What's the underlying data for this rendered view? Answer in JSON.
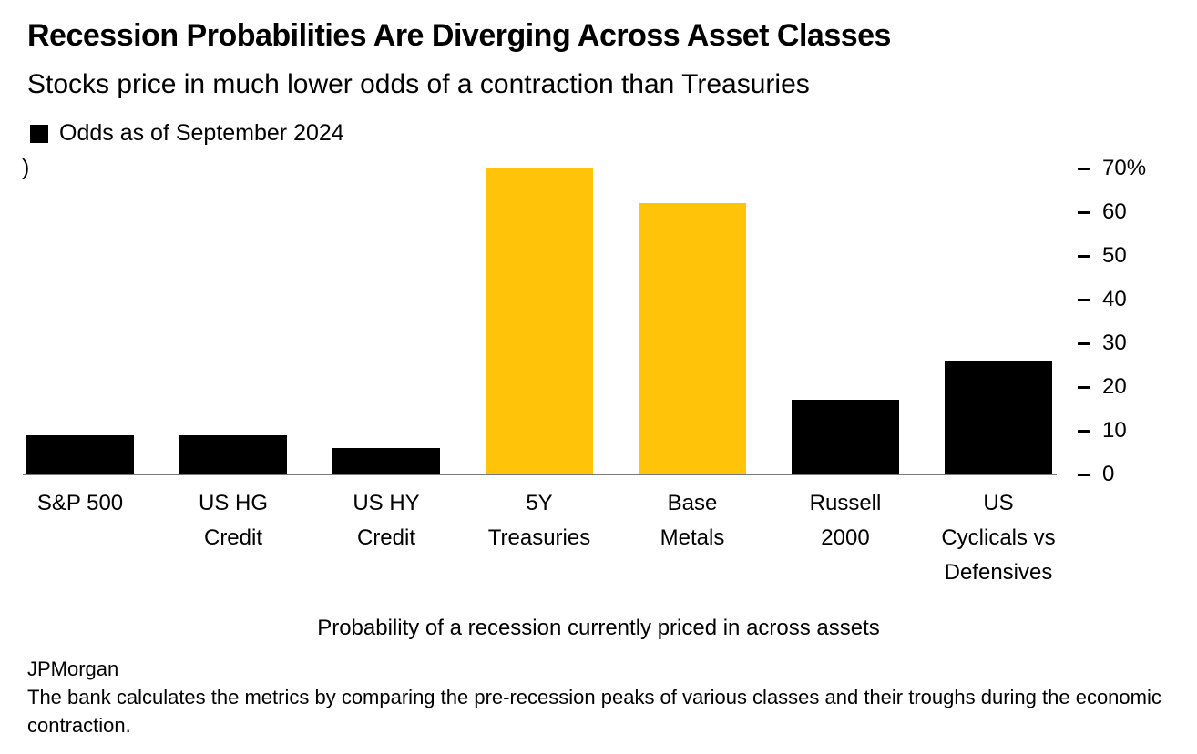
{
  "chart_data": {
    "type": "bar",
    "title": "Recession Probabilities Are Diverging Across Asset Classes",
    "subtitle": "Stocks price in much lower odds of a contraction than Treasuries",
    "legend": [
      "Odds as of September 2024"
    ],
    "legend_marker_color": "#000000",
    "categories": [
      "S&P 500",
      "US HG Credit",
      "US HY Credit",
      "5Y Treasuries",
      "Base Metals",
      "Russell 2000",
      "US Cyclicals vs Defensives"
    ],
    "category_lines": [
      [
        "S&P 500"
      ],
      [
        "US HG",
        "Credit"
      ],
      [
        "US HY",
        "Credit"
      ],
      [
        "5Y",
        "Treasuries"
      ],
      [
        "Base",
        "Metals"
      ],
      [
        "Russell",
        "2000"
      ],
      [
        "US",
        "Cyclicals vs",
        "Defensives"
      ]
    ],
    "values": [
      9,
      9,
      6,
      70,
      62,
      17,
      26
    ],
    "unit": "%",
    "bar_colors": [
      "#000000",
      "#000000",
      "#000000",
      "#FFC40A",
      "#FFC40A",
      "#000000",
      "#000000"
    ],
    "default_color": "#000000",
    "highlight_color": "#FFC40A",
    "y_ticks": [
      0,
      10,
      20,
      30,
      40,
      50,
      60,
      70
    ],
    "y_tick_labels": [
      "0",
      "10",
      "20",
      "30",
      "40",
      "50",
      "60",
      "70%"
    ],
    "ylim": [
      0,
      74
    ],
    "axis_side": "right",
    "grid": false,
    "axis_line_color": "#787878",
    "clipped_left_glyph": ")",
    "xlabel": "Probability of a recession currently priced in across assets"
  },
  "footer": {
    "source": "JPMorgan",
    "note": "The bank calculates the metrics by comparing the pre-recession peaks of various classes and their troughs during the economic contraction."
  }
}
